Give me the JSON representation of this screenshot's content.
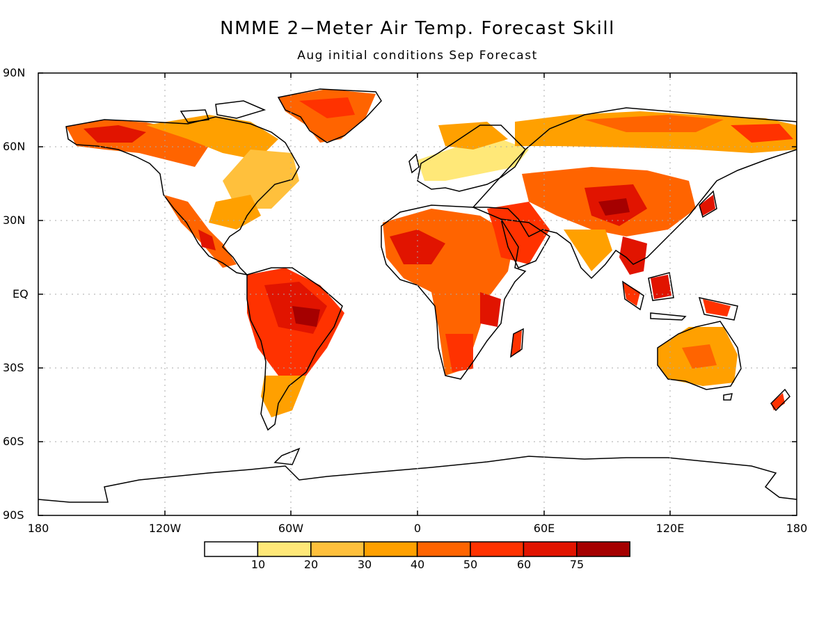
{
  "title": "NMME 2−Meter Air Temp. Forecast Skill",
  "subtitle": "Aug initial conditions  Sep Forecast",
  "lat_labels": [
    "90N",
    "60N",
    "30N",
    "EQ",
    "30S",
    "60S",
    "90S"
  ],
  "lon_labels": [
    "180",
    "120W",
    "60W",
    "0",
    "60E",
    "120E",
    "180"
  ],
  "colorbar": {
    "colors": [
      "#ffffff",
      "#ffe878",
      "#ffc03c",
      "#ffa000",
      "#ff6400",
      "#ff3200",
      "#e11400",
      "#a50000"
    ],
    "labels": [
      "10",
      "20",
      "30",
      "40",
      "50",
      "60",
      "75"
    ]
  }
}
